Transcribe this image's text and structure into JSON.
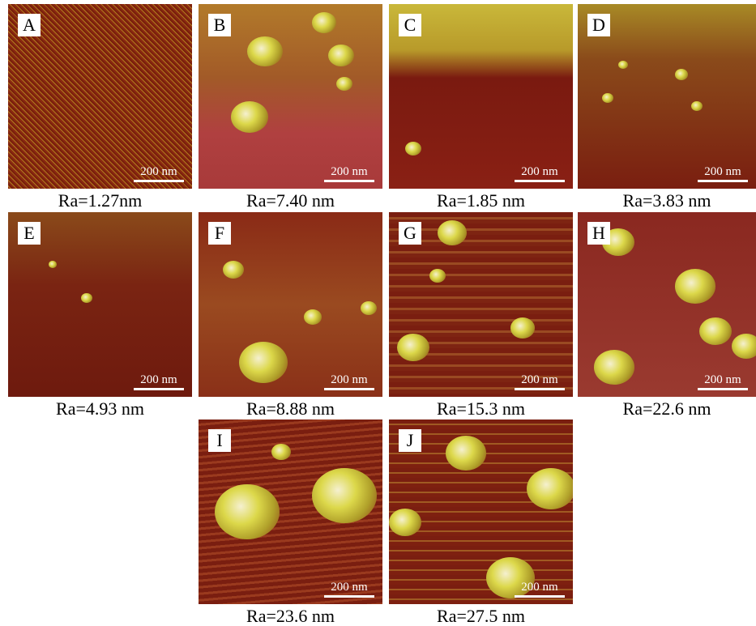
{
  "panels": [
    {
      "label": "A",
      "scale": "200 nm",
      "caption": "Ra=1.27nm"
    },
    {
      "label": "B",
      "scale": "200 nm",
      "caption": "Ra=7.40 nm"
    },
    {
      "label": "C",
      "scale": "200 nm",
      "caption": "Ra=1.85 nm"
    },
    {
      "label": "D",
      "scale": "200 nm",
      "caption": "Ra=3.83 nm"
    },
    {
      "label": "E",
      "scale": "200 nm",
      "caption": "Ra=4.93 nm"
    },
    {
      "label": "F",
      "scale": "200 nm",
      "caption": "Ra=8.88 nm"
    },
    {
      "label": "G",
      "scale": "200 nm",
      "caption": "Ra=15.3 nm"
    },
    {
      "label": "H",
      "scale": "200 nm",
      "caption": "Ra=22.6 nm"
    },
    {
      "label": "I",
      "scale": "200 nm",
      "caption": "Ra=23.6 nm"
    },
    {
      "label": "J",
      "scale": "200 nm",
      "caption": "Ra=27.5 nm"
    }
  ]
}
